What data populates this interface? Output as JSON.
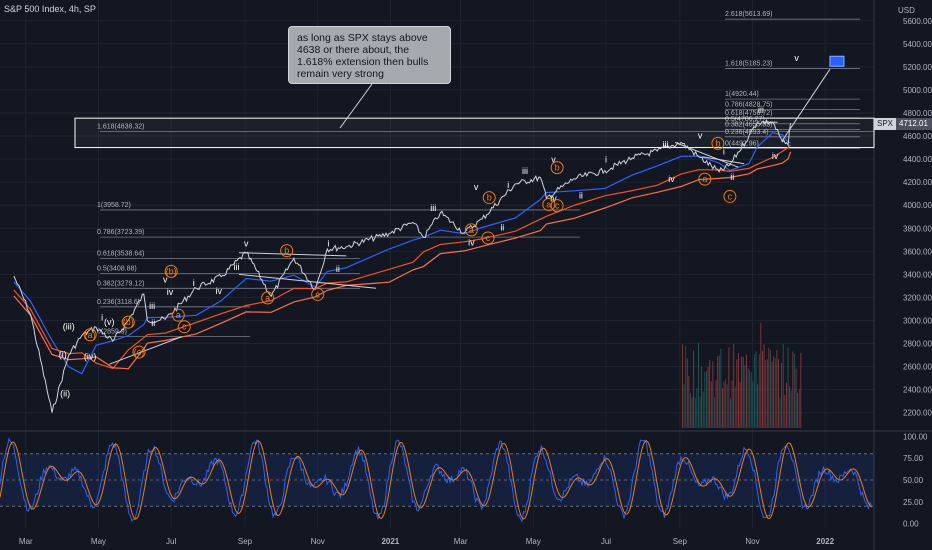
{
  "header": {
    "title": "S&P 500 Index, 4h, SP",
    "currency": "USD"
  },
  "note": {
    "text": "as long as SPX stays above 4638 or there about, the 1.618% extension then bulls remain very strong"
  },
  "price_tag": {
    "symbol": "SPX",
    "value": "4712.01"
  },
  "colors": {
    "background": "#131722",
    "price": "#d1d4dc",
    "ema_fast": "#2962ff",
    "ema_slow": "#f4511e",
    "wave_white": "#ffffff",
    "wave_orange": "#f57c00",
    "stoch_k": "#2962ff",
    "stoch_d": "#f57c00"
  },
  "chart_data": [
    {
      "type": "line",
      "series": [
        {
          "name": "",
          "x": [
            "2020-02-20",
            "2020-03-05",
            "2020-03-23",
            "2020-04-06",
            "2020-04-17",
            "2020-04-29",
            "2020-05-13",
            "2020-05-26",
            "2020-06-08",
            "2020-06-11",
            "2020-06-26",
            "2020-07-22",
            "2020-08-12",
            "2020-09-02",
            "2020-09-23",
            "2020-10-12",
            "2020-10-30",
            "2020-11-09",
            "2020-11-25",
            "2020-12-31",
            "2021-01-20",
            "2021-01-29",
            "2021-02-12",
            "2021-03-04",
            "2021-03-19",
            "2021-04-16",
            "2021-05-07",
            "2021-05-12",
            "2021-06-04",
            "2021-06-30",
            "2021-07-23",
            "2021-08-13",
            "2021-09-02",
            "2021-09-17",
            "2021-10-04",
            "2021-10-13",
            "2021-10-29",
            "2021-11-05",
            "2021-11-18",
            "2021-11-26",
            "2021-12-01",
            "2021-12-03"
          ],
          "y": [
            3386,
            3050,
            2200,
            2700,
            2870,
            2940,
            2820,
            3000,
            3230,
            3000,
            3010,
            3280,
            3380,
            3588,
            3210,
            3540,
            3270,
            3620,
            3640,
            3756,
            3850,
            3720,
            3935,
            3760,
            3880,
            4185,
            4240,
            4060,
            4230,
            4300,
            4410,
            4470,
            4545,
            4420,
            4290,
            4350,
            4600,
            4720,
            4720,
            4550,
            4520,
            4712
          ]
        }
      ],
      "ylim": [
        2050,
        5780
      ],
      "y_ticks": [
        2200,
        2400,
        2600,
        2800,
        3000,
        3200,
        3400,
        3600,
        3800,
        4000,
        4200,
        4400,
        4600,
        4800,
        5000,
        5200,
        5400,
        5600
      ],
      "x_ticks": [
        "Mar",
        "May",
        "Jul",
        "Sep",
        "Nov",
        "2021",
        "Mar",
        "May",
        "Jul",
        "Sep",
        "Nov",
        "2022"
      ],
      "fib_levels": [
        {
          "label": "1.618(4638.32)"
        },
        {
          "label": "1(3958.72)"
        },
        {
          "label": "0.786(3723.39)"
        },
        {
          "label": "0.618(3538.64)"
        },
        {
          "label": "0.5(3408.88)"
        },
        {
          "label": "0.382(3279.12)"
        },
        {
          "label": "0.236(3118.6)"
        },
        {
          "label": "0(2859.9)"
        },
        {
          "label": "2.618(5613.69)"
        },
        {
          "label": "1.618(5185.23)"
        },
        {
          "label": "1(4920.44)"
        },
        {
          "label": "0.786(4828.75)"
        },
        {
          "label": "0.618(4756.72)"
        },
        {
          "label": "0.5(4706.27)"
        },
        {
          "label": "0.382(4655.83)"
        },
        {
          "label": "0.236(4593.4)"
        },
        {
          "label": "0(4492.96)"
        }
      ],
      "wave_labels": [
        "(i)",
        "(ii)",
        "(iii)",
        "(iv)",
        "(v)",
        "(a)",
        "(b)",
        "(c)",
        "i",
        "ii",
        "iii",
        "iv",
        "v",
        "a",
        "b",
        "c"
      ]
    },
    {
      "type": "line",
      "series": [
        {
          "name": ""
        },
        {
          "name": ""
        }
      ],
      "ylim": [
        -5,
        105
      ],
      "y_ticks": [
        "100.00",
        "75.00",
        "50.00",
        "25.00",
        "0.00"
      ]
    }
  ]
}
